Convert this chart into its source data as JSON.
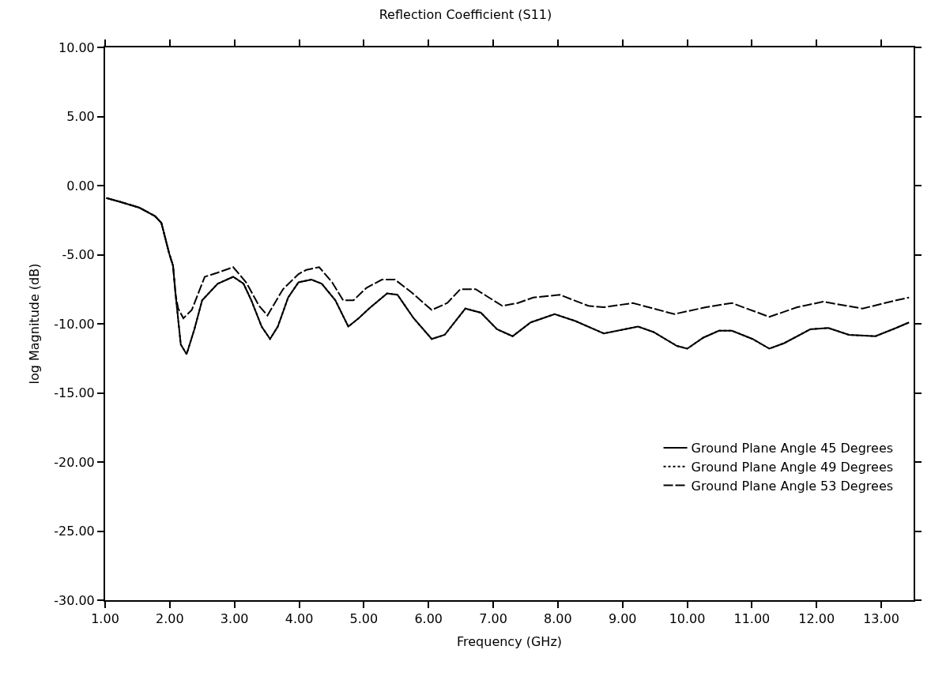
{
  "chart_data": {
    "type": "line",
    "title": "Reflection Coefficient (S11)",
    "xlabel": "Frequency (GHz)",
    "ylabel": "log Magnitude (dB)",
    "xlim": [
      1,
      13.5
    ],
    "ylim": [
      -30,
      10
    ],
    "xticks": [
      {
        "value": 1,
        "label": "1.00"
      },
      {
        "value": 2,
        "label": "2.00"
      },
      {
        "value": 3,
        "label": "3.00"
      },
      {
        "value": 4,
        "label": "4.00"
      },
      {
        "value": 5,
        "label": "5.00"
      },
      {
        "value": 6,
        "label": "6.00"
      },
      {
        "value": 7,
        "label": "7.00"
      },
      {
        "value": 8,
        "label": "8.00"
      },
      {
        "value": 9,
        "label": "9.00"
      },
      {
        "value": 10,
        "label": "10.00"
      },
      {
        "value": 11,
        "label": "11.00"
      },
      {
        "value": 12,
        "label": "12.00"
      },
      {
        "value": 13,
        "label": "13.00"
      }
    ],
    "yticks": [
      {
        "value": -30,
        "label": "-30.00"
      },
      {
        "value": -25,
        "label": "-25.00"
      },
      {
        "value": -20,
        "label": "-20.00"
      },
      {
        "value": -15,
        "label": "-15.00"
      },
      {
        "value": -10,
        "label": "-10.00"
      },
      {
        "value": -5,
        "label": "-5.00"
      },
      {
        "value": 0,
        "label": "0.00"
      },
      {
        "value": 5,
        "label": "5.00"
      },
      {
        "value": 10,
        "label": "10.00"
      }
    ],
    "legend": "bottom right",
    "marker": "none",
    "series": [
      {
        "name": "Ground Plane Angle 45 Degrees",
        "color": "#000000",
        "line_style": "solid",
        "x": [
          1.02,
          1.25,
          1.53,
          1.77,
          1.87,
          1.99,
          2.05,
          2.09,
          2.17,
          2.26,
          2.38,
          2.5,
          2.74,
          2.98,
          3.14,
          3.26,
          3.42,
          3.55,
          3.67,
          3.83,
          3.99,
          4.19,
          4.35,
          4.56,
          4.76,
          4.92,
          5.08,
          5.36,
          5.52,
          5.77,
          6.05,
          6.25,
          6.57,
          6.81,
          7.06,
          7.3,
          7.58,
          7.95,
          8.27,
          8.71,
          9.24,
          9.48,
          9.84,
          10.0,
          10.25,
          10.49,
          10.69,
          11.01,
          11.27,
          11.5,
          11.9,
          12.18,
          12.5,
          12.91,
          13.23,
          13.43
        ],
        "values": [
          -0.9,
          -1.2,
          -1.6,
          -2.2,
          -2.7,
          -4.9,
          -5.8,
          -7.9,
          -11.5,
          -12.2,
          -10.4,
          -8.3,
          -7.1,
          -6.6,
          -7.1,
          -8.3,
          -10.2,
          -11.1,
          -10.2,
          -8.1,
          -7.0,
          -6.8,
          -7.1,
          -8.3,
          -10.2,
          -9.6,
          -8.9,
          -7.8,
          -7.9,
          -9.6,
          -11.1,
          -10.8,
          -8.9,
          -9.2,
          -10.4,
          -10.9,
          -9.9,
          -9.3,
          -9.8,
          -10.7,
          -10.2,
          -10.6,
          -11.6,
          -11.8,
          -11.0,
          -10.5,
          -10.5,
          -11.1,
          -11.8,
          -11.4,
          -10.4,
          -10.3,
          -10.8,
          -10.9,
          -10.3,
          -9.9
        ]
      },
      {
        "name": "Ground Plane Angle 49 Degrees",
        "color": "#000000",
        "line_style": "dotted",
        "x": [
          1.02,
          1.25,
          1.53,
          1.77,
          1.87,
          1.99,
          2.05,
          2.09,
          2.17,
          2.26,
          2.38,
          2.5,
          2.74,
          2.98,
          3.14,
          3.26,
          3.42,
          3.55,
          3.67,
          3.83,
          3.99,
          4.19,
          4.35,
          4.56,
          4.76,
          4.92,
          5.08,
          5.36,
          5.52,
          5.77,
          6.05,
          6.25,
          6.57,
          6.81,
          7.06,
          7.3,
          7.58,
          7.95,
          8.27,
          8.71,
          9.24,
          9.48,
          9.84,
          10.0,
          10.25,
          10.49,
          10.69,
          11.01,
          11.27,
          11.5,
          11.9,
          12.18,
          12.5,
          12.91,
          13.23,
          13.43
        ],
        "values": [
          -0.9,
          -1.2,
          -1.6,
          -2.2,
          -2.7,
          -4.9,
          -5.8,
          -7.9,
          -11.5,
          -12.2,
          -10.4,
          -8.3,
          -7.1,
          -6.6,
          -7.1,
          -8.3,
          -10.2,
          -11.1,
          -10.2,
          -8.1,
          -7.0,
          -6.8,
          -7.1,
          -8.3,
          -10.2,
          -9.6,
          -8.9,
          -7.8,
          -7.9,
          -9.6,
          -11.1,
          -10.8,
          -8.9,
          -9.2,
          -10.4,
          -10.9,
          -9.9,
          -9.3,
          -9.8,
          -10.7,
          -10.2,
          -10.6,
          -11.6,
          -11.8,
          -11.0,
          -10.5,
          -10.5,
          -11.1,
          -11.8,
          -11.4,
          -10.4,
          -10.3,
          -10.8,
          -10.9,
          -10.3,
          -9.9
        ]
      },
      {
        "name": "Ground Plane Angle 53 Degrees",
        "color": "#000000",
        "line_style": "dashed",
        "x": [
          1.02,
          1.25,
          1.53,
          1.77,
          1.87,
          1.99,
          2.05,
          2.09,
          2.13,
          2.21,
          2.34,
          2.54,
          2.74,
          2.98,
          3.18,
          3.38,
          3.51,
          3.75,
          3.99,
          4.11,
          4.31,
          4.51,
          4.68,
          4.84,
          5.04,
          5.28,
          5.48,
          5.73,
          6.05,
          6.29,
          6.49,
          6.73,
          6.9,
          7.14,
          7.38,
          7.62,
          8.03,
          8.47,
          8.71,
          9.16,
          9.8,
          10.29,
          10.69,
          11.27,
          11.7,
          12.1,
          12.71,
          13.23,
          13.43
        ],
        "values": [
          -0.9,
          -1.2,
          -1.6,
          -2.2,
          -2.7,
          -4.9,
          -5.8,
          -7.9,
          -8.9,
          -9.6,
          -9.0,
          -6.6,
          -6.3,
          -5.9,
          -7.0,
          -8.7,
          -9.4,
          -7.5,
          -6.4,
          -6.1,
          -5.9,
          -7.0,
          -8.3,
          -8.3,
          -7.4,
          -6.8,
          -6.8,
          -7.7,
          -9.0,
          -8.5,
          -7.5,
          -7.5,
          -8.0,
          -8.7,
          -8.5,
          -8.1,
          -7.9,
          -8.7,
          -8.8,
          -8.5,
          -9.3,
          -8.8,
          -8.5,
          -9.5,
          -8.8,
          -8.4,
          -8.9,
          -8.3,
          -8.1
        ]
      }
    ]
  }
}
